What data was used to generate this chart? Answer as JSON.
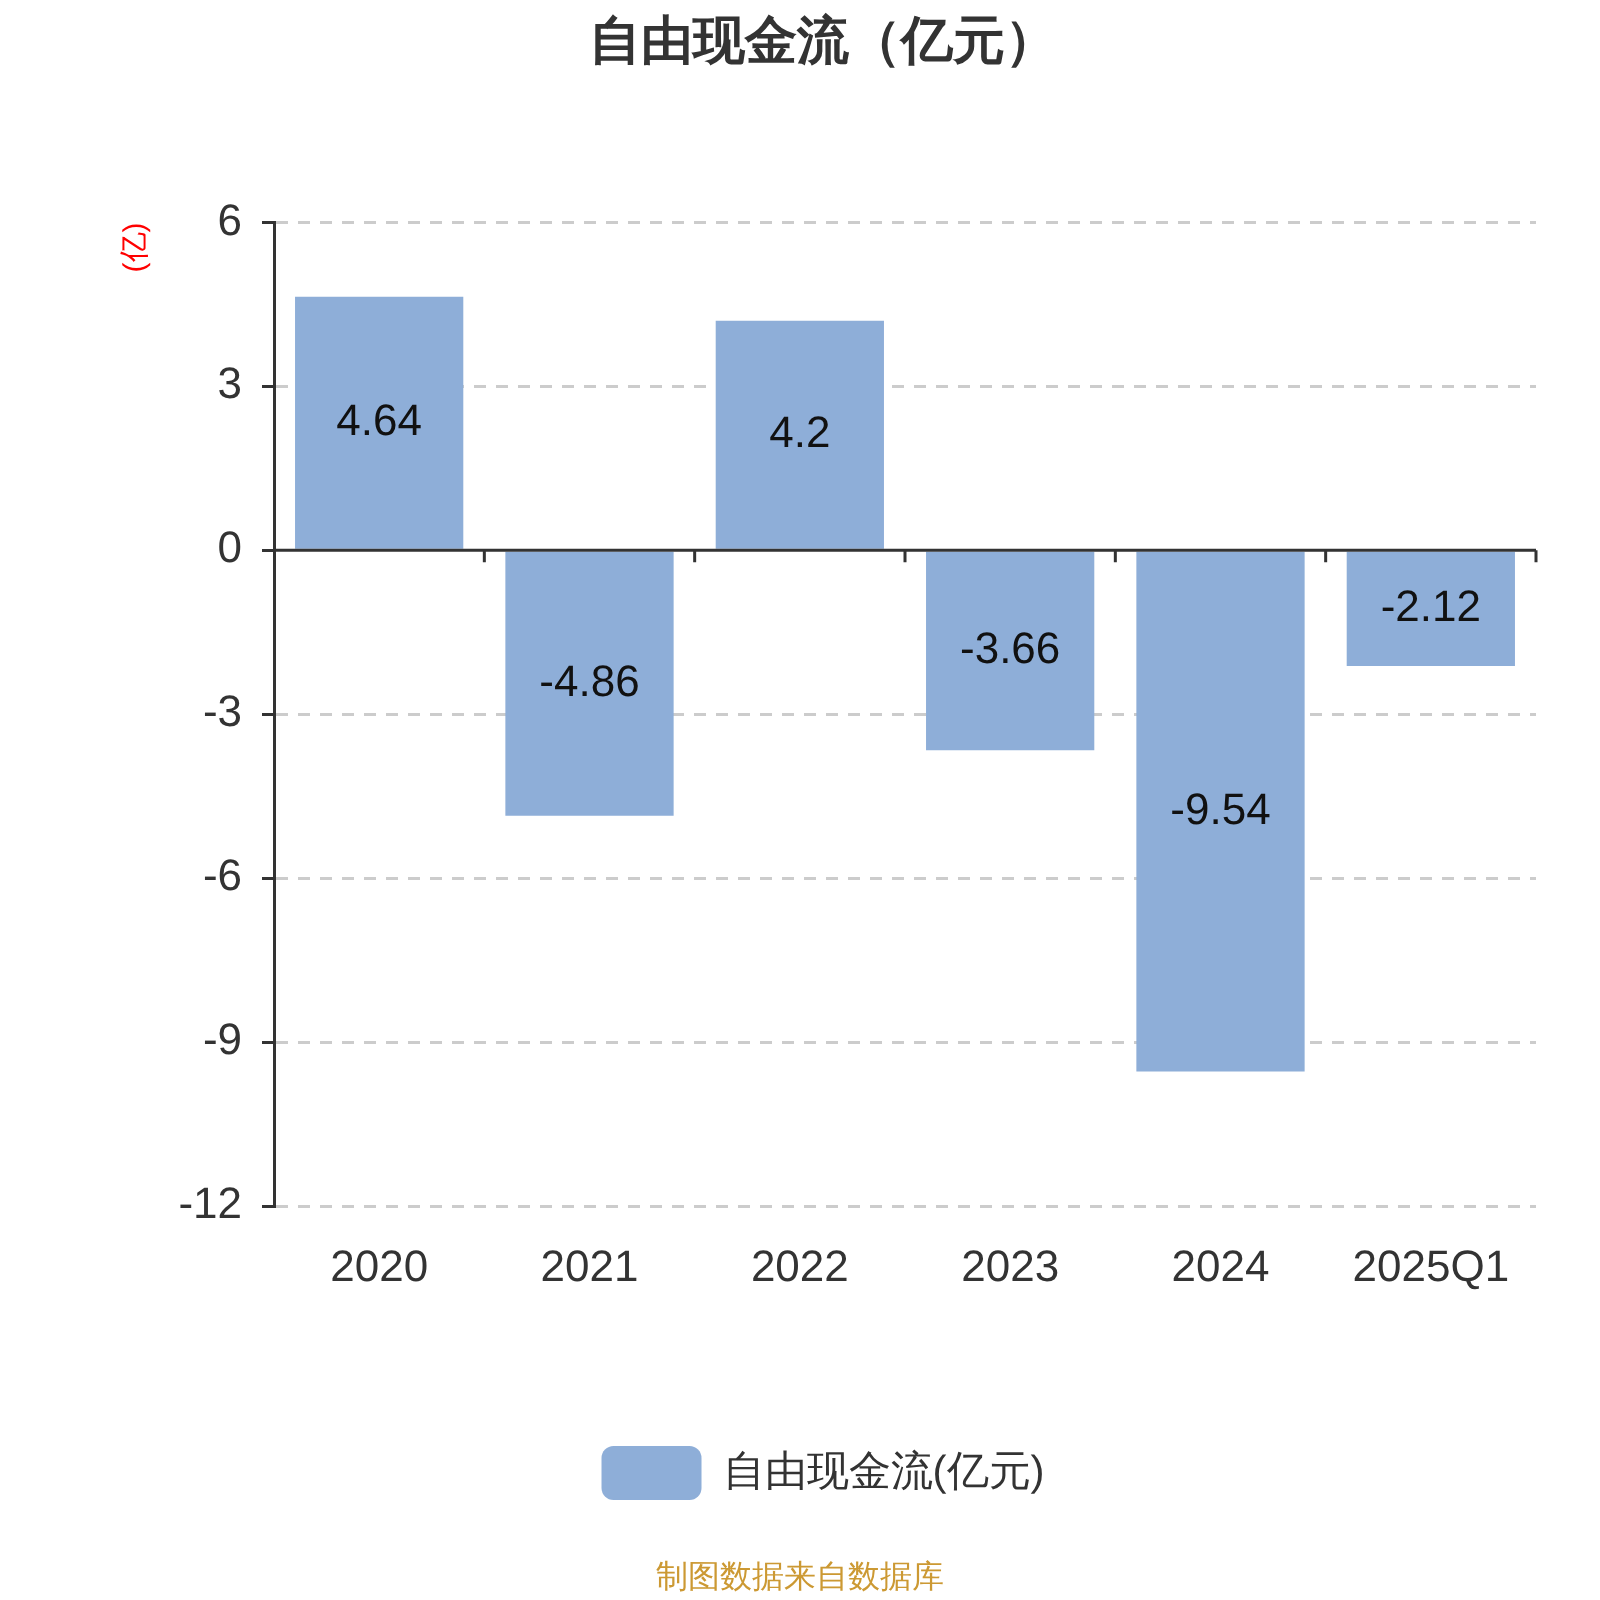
{
  "chart_data": {
    "type": "bar",
    "title": "自由现金流（亿元）",
    "ylabel": "(亿)",
    "categories": [
      "2020",
      "2021",
      "2022",
      "2023",
      "2024",
      "2025Q1"
    ],
    "series": [
      {
        "name": "自由现金流(亿元)",
        "color": "#8eaed8",
        "values": [
          4.64,
          -4.86,
          4.2,
          -3.66,
          -9.54,
          -2.12
        ]
      }
    ],
    "ylim": [
      -12,
      6
    ],
    "yticks": [
      -12,
      -9,
      -6,
      -3,
      0,
      3,
      6
    ],
    "grid": "y",
    "legend": "bottom",
    "data_labels": true,
    "annotations": [
      "制图数据来自数据库"
    ]
  }
}
